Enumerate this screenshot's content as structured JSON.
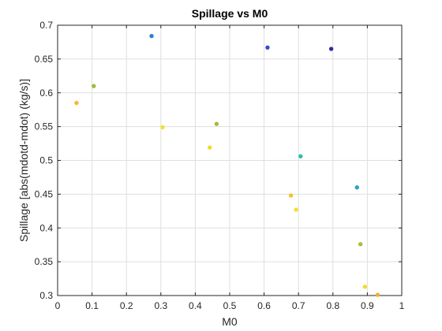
{
  "chart_data": {
    "type": "scatter",
    "title": "Spillage vs M0",
    "xlabel": "M0",
    "ylabel": "Spillage [abs(mdotd-mdot) (kg/s)]",
    "xlim": [
      0,
      1
    ],
    "ylim": [
      0.3,
      0.7
    ],
    "xticks": [
      "0",
      "0.1",
      "0.2",
      "0.3",
      "0.4",
      "0.5",
      "0.6",
      "0.7",
      "0.8",
      "0.9",
      "1"
    ],
    "yticks": [
      "0.3",
      "0.35",
      "0.4",
      "0.45",
      "0.5",
      "0.55",
      "0.6",
      "0.65",
      "0.7"
    ],
    "grid": true,
    "points": [
      {
        "x": 0.055,
        "y": 0.585,
        "color": "#f5b92f"
      },
      {
        "x": 0.105,
        "y": 0.61,
        "color": "#9cbf3b"
      },
      {
        "x": 0.273,
        "y": 0.684,
        "color": "#2f7fd2"
      },
      {
        "x": 0.305,
        "y": 0.549,
        "color": "#f1e22a"
      },
      {
        "x": 0.442,
        "y": 0.519,
        "color": "#f0dc2b"
      },
      {
        "x": 0.462,
        "y": 0.554,
        "color": "#9fc03a"
      },
      {
        "x": 0.61,
        "y": 0.667,
        "color": "#3a4bd2"
      },
      {
        "x": 0.678,
        "y": 0.448,
        "color": "#f5c22e"
      },
      {
        "x": 0.693,
        "y": 0.427,
        "color": "#f1e22a"
      },
      {
        "x": 0.706,
        "y": 0.506,
        "color": "#2fbfa0"
      },
      {
        "x": 0.795,
        "y": 0.665,
        "color": "#2d2a9c"
      },
      {
        "x": 0.87,
        "y": 0.46,
        "color": "#2aa3c4"
      },
      {
        "x": 0.88,
        "y": 0.376,
        "color": "#a3c13b"
      },
      {
        "x": 0.893,
        "y": 0.313,
        "color": "#f4dc2a"
      },
      {
        "x": 0.93,
        "y": 0.301,
        "color": "#f6aa30"
      }
    ]
  }
}
